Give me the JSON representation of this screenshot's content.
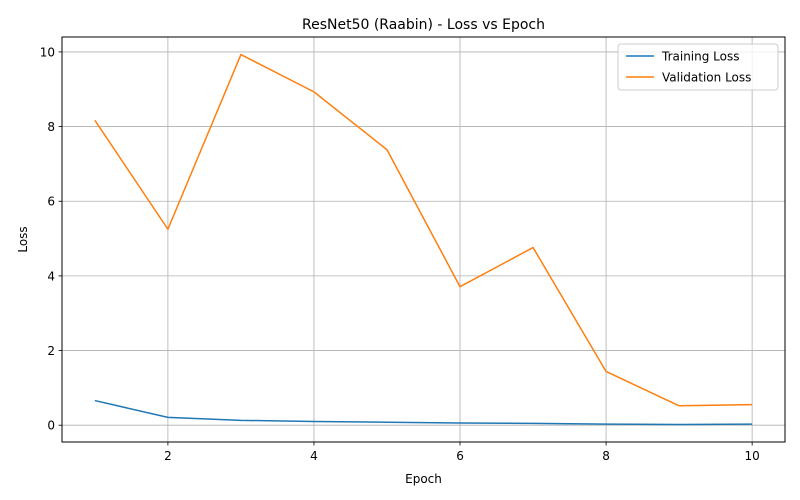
{
  "chart_data": {
    "type": "line",
    "title": "ResNet50 (Raabin) - Loss vs Epoch",
    "xlabel": "Epoch",
    "ylabel": "Loss",
    "x": [
      1,
      2,
      3,
      4,
      5,
      6,
      7,
      8,
      9,
      10
    ],
    "xlim": [
      0.55,
      10.45
    ],
    "ylim": [
      -0.45,
      10.4
    ],
    "xticks": [
      2,
      4,
      6,
      8,
      10
    ],
    "yticks": [
      0,
      2,
      4,
      6,
      8,
      10
    ],
    "grid": true,
    "legend_position": "top-right",
    "series": [
      {
        "name": "Training Loss",
        "color": "#1f77b4",
        "values": [
          0.66,
          0.21,
          0.13,
          0.1,
          0.08,
          0.06,
          0.05,
          0.03,
          0.02,
          0.03
        ]
      },
      {
        "name": "Validation Loss",
        "color": "#ff7f0e",
        "values": [
          8.17,
          5.25,
          9.93,
          8.93,
          7.38,
          3.71,
          4.76,
          1.44,
          0.52,
          0.55
        ]
      }
    ]
  }
}
